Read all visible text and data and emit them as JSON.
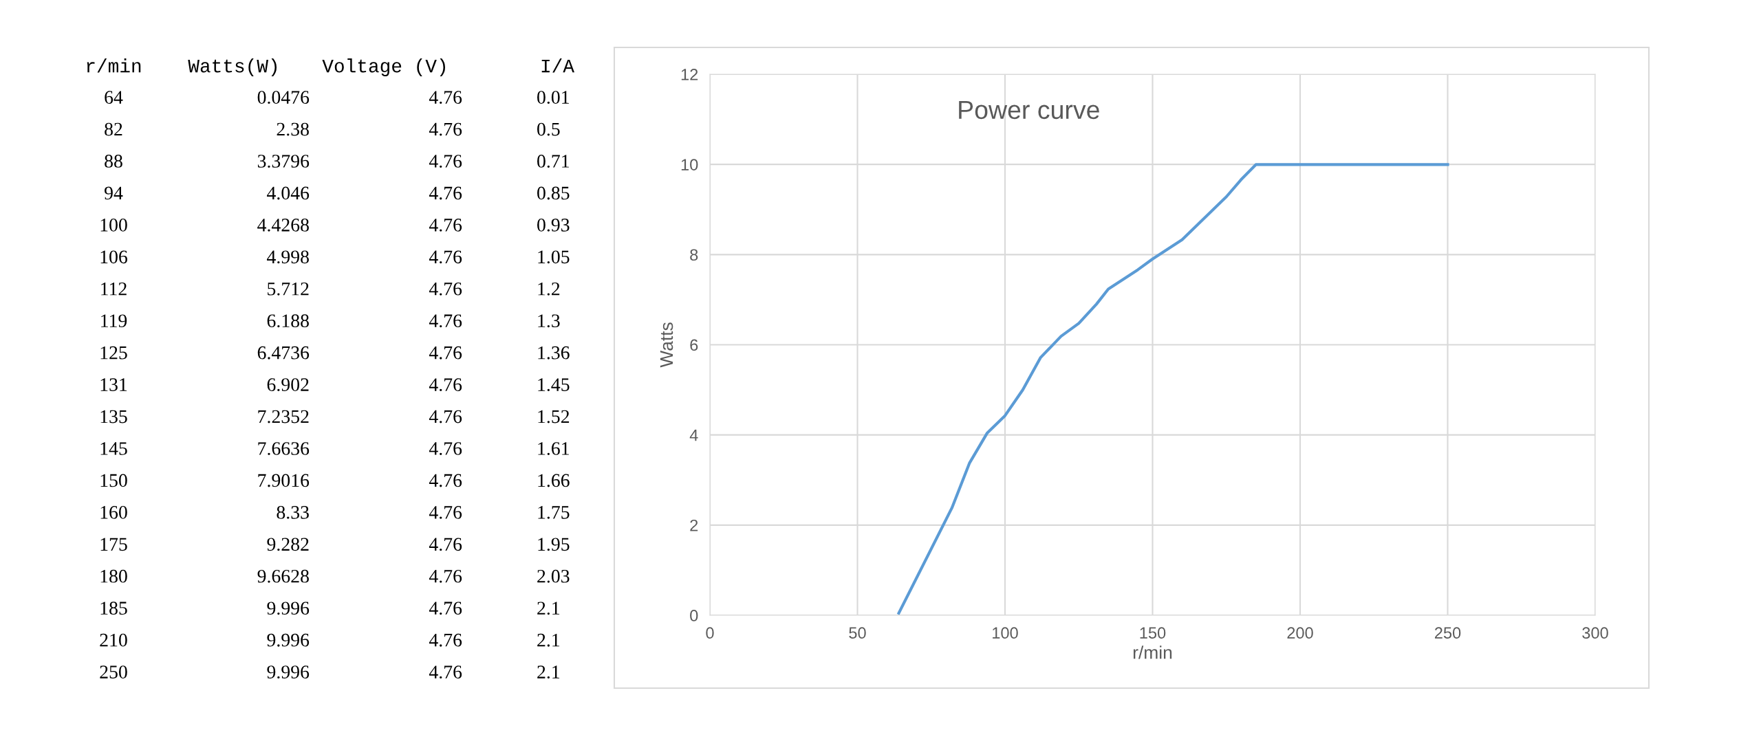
{
  "chart_data": [
    {
      "type": "other",
      "categories": [
        "64",
        "82",
        "88",
        "94",
        "100",
        "106",
        "112",
        "119",
        "125",
        "131",
        "135",
        "145",
        "150",
        "160",
        "175",
        "180",
        "185",
        "210",
        "250"
      ],
      "xlabel": "r/min",
      "data_labels": true,
      "series": [
        {
          "name": "Watts(W)",
          "values": [
            0.0476,
            2.38,
            3.3796,
            4.046,
            4.4268,
            4.998,
            5.712,
            6.188,
            6.4736,
            6.902,
            7.2352,
            7.6636,
            7.9016,
            8.33,
            9.282,
            9.6628,
            9.996,
            9.996,
            9.996
          ]
        },
        {
          "name": "Voltage (V)",
          "values": [
            4.76,
            4.76,
            4.76,
            4.76,
            4.76,
            4.76,
            4.76,
            4.76,
            4.76,
            4.76,
            4.76,
            4.76,
            4.76,
            4.76,
            4.76,
            4.76,
            4.76,
            4.76,
            4.76
          ]
        },
        {
          "name": "I/A",
          "values": [
            0.01,
            0.5,
            0.71,
            0.85,
            0.93,
            1.05,
            1.2,
            1.3,
            1.36,
            1.45,
            1.52,
            1.61,
            1.66,
            1.75,
            1.95,
            2.03,
            2.1,
            2.1,
            2.1
          ]
        }
      ]
    },
    {
      "type": "line",
      "title": "Power curve",
      "xlabel": "r/min",
      "ylabel": "Watts",
      "x": [
        64,
        82,
        88,
        94,
        100,
        106,
        112,
        119,
        125,
        131,
        135,
        145,
        150,
        160,
        175,
        180,
        185,
        210,
        250
      ],
      "series": [
        {
          "color": "#5b9bd5",
          "values": [
            0.0476,
            2.38,
            3.3796,
            4.046,
            4.4268,
            4.998,
            5.712,
            6.188,
            6.4736,
            6.902,
            7.2352,
            7.6636,
            7.9016,
            8.33,
            9.282,
            9.6628,
            9.996,
            9.996,
            9.996
          ]
        }
      ],
      "xlim": [
        0,
        300
      ],
      "xticks": [
        0,
        50,
        100,
        150,
        200,
        250,
        300
      ],
      "ylim": [
        0,
        12
      ],
      "yticks": [
        0,
        2,
        4,
        6,
        8,
        10,
        12
      ],
      "grid": true,
      "marker": "none",
      "line_style": "solid",
      "legend": false
    }
  ]
}
